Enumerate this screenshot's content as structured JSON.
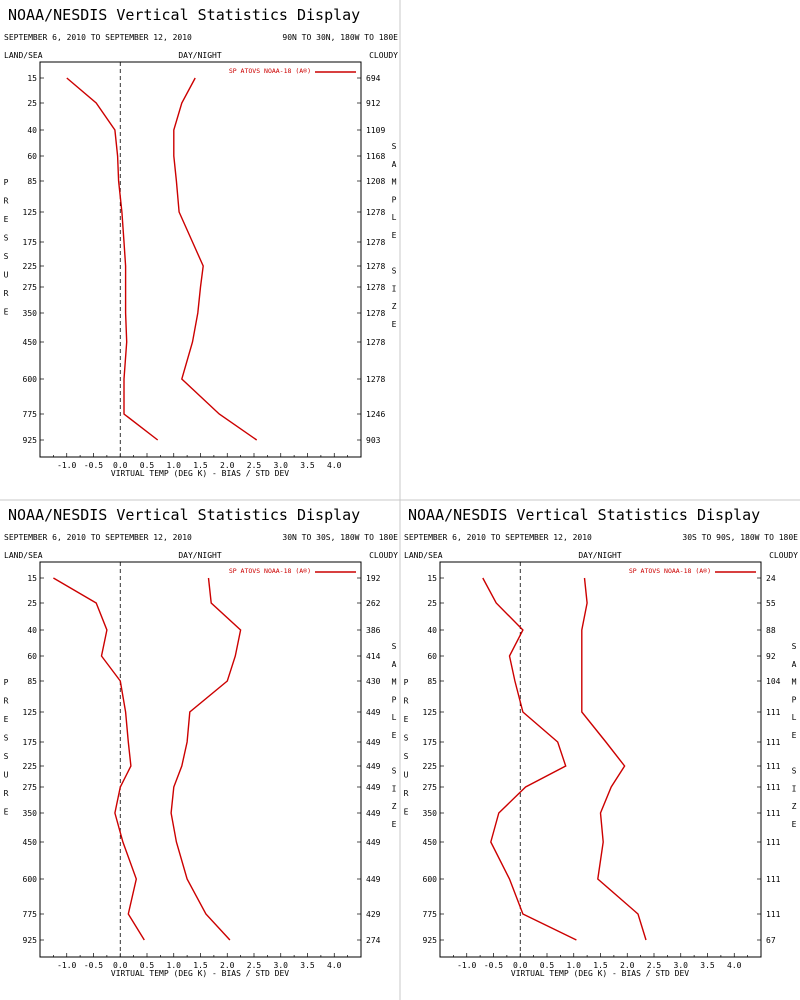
{
  "axis_labels": {
    "land_sea": "LAND/SEA",
    "day_night": "DAY/NIGHT",
    "cloudy": "CLOUDY",
    "pressure": "PRESSURE",
    "sample_size": "SAMPLE SIZE",
    "xlabel": "VIRTUAL TEMP (DEG K) - BIAS / STD DEV"
  },
  "pressure_levels": [
    "15",
    "25",
    "40",
    "60",
    "85",
    "125",
    "175",
    "225",
    "275",
    "350",
    "450",
    "600",
    "775",
    "925"
  ],
  "x_ticks": [
    "-1.0",
    "-0.5",
    "0.0",
    "0.5",
    "1.0",
    "1.5",
    "2.0",
    "2.5",
    "3.0",
    "3.5",
    "4.0"
  ],
  "line_color": "#cc0000",
  "chart_data": [
    {
      "type": "line",
      "title": "NOAA/NESDIS Vertical Statistics Display",
      "date_range": "SEPTEMBER 6, 2010 TO SEPTEMBER 12, 2010",
      "region": "90N TO 30N, 180W TO 180E",
      "legend": "SP ATOVS NOAA-18 (A®)",
      "xlim": [
        -1.5,
        4.5
      ],
      "y": [
        "15",
        "25",
        "40",
        "60",
        "85",
        "125",
        "175",
        "225",
        "275",
        "350",
        "450",
        "600",
        "775",
        "925"
      ],
      "sample_size": [
        "694",
        "912",
        "1109",
        "1168",
        "1208",
        "1278",
        "1278",
        "1278",
        "1278",
        "1278",
        "1278",
        "1278",
        "1246",
        "903"
      ],
      "series": [
        {
          "values": [
            -1.0,
            -0.45,
            -0.1,
            -0.05,
            -0.03,
            0.03,
            0.07,
            0.1,
            0.1,
            0.1,
            0.12,
            0.07,
            0.07,
            0.7
          ]
        },
        {
          "values": [
            1.4,
            1.15,
            1.0,
            1.0,
            1.05,
            1.1,
            1.35,
            1.55,
            1.5,
            1.45,
            1.35,
            1.15,
            1.85,
            2.55
          ]
        }
      ]
    },
    {
      "type": "line",
      "title": "NOAA/NESDIS Vertical Statistics Display",
      "date_range": "SEPTEMBER 6, 2010 TO SEPTEMBER 12, 2010",
      "region": "30N TO 30S, 180W TO 180E",
      "legend": "SP ATOVS NOAA-18 (A®)",
      "xlim": [
        -1.5,
        4.5
      ],
      "y": [
        "15",
        "25",
        "40",
        "60",
        "85",
        "125",
        "175",
        "225",
        "275",
        "350",
        "450",
        "600",
        "775",
        "925"
      ],
      "sample_size": [
        "192",
        "262",
        "386",
        "414",
        "430",
        "449",
        "449",
        "449",
        "449",
        "449",
        "449",
        "449",
        "429",
        "274"
      ],
      "series": [
        {
          "values": [
            -1.25,
            -0.45,
            -0.25,
            -0.35,
            0.0,
            0.1,
            0.15,
            0.2,
            0.0,
            -0.1,
            0.05,
            0.3,
            0.15,
            0.45
          ]
        },
        {
          "values": [
            1.65,
            1.7,
            2.25,
            2.15,
            2.0,
            1.3,
            1.25,
            1.15,
            1.0,
            0.95,
            1.05,
            1.25,
            1.6,
            2.05
          ]
        }
      ]
    },
    {
      "type": "line",
      "title": "NOAA/NESDIS Vertical Statistics Display",
      "date_range": "SEPTEMBER 6, 2010 TO SEPTEMBER 12, 2010",
      "region": "30S TO 90S, 180W TO 180E",
      "legend": "SP ATOVS NOAA-18 (A®)",
      "xlim": [
        -1.5,
        4.5
      ],
      "y": [
        "15",
        "25",
        "40",
        "60",
        "85",
        "125",
        "175",
        "225",
        "275",
        "350",
        "450",
        "600",
        "775",
        "925"
      ],
      "sample_size": [
        "24",
        "55",
        "88",
        "92",
        "104",
        "111",
        "111",
        "111",
        "111",
        "111",
        "111",
        "111",
        "111",
        "67"
      ],
      "series": [
        {
          "values": [
            -0.7,
            -0.45,
            0.05,
            -0.2,
            -0.1,
            0.05,
            0.7,
            0.85,
            0.1,
            -0.4,
            -0.55,
            -0.2,
            0.05,
            1.05
          ]
        },
        {
          "values": [
            1.2,
            1.25,
            1.15,
            1.15,
            1.15,
            1.15,
            1.6,
            1.95,
            1.7,
            1.5,
            1.55,
            1.45,
            2.2,
            2.35
          ]
        }
      ]
    }
  ]
}
